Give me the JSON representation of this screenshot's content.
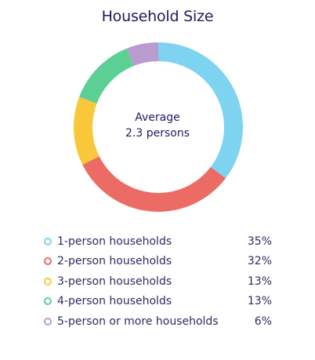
{
  "chart_data": {
    "type": "pie",
    "title": "Household Size",
    "center_label": [
      "Average",
      "2.3 persons"
    ],
    "categories": [
      "1-person households",
      "2-person households",
      "3-person households",
      "4-person households",
      "5-person or more households"
    ],
    "values": [
      35,
      32,
      13,
      13,
      6
    ],
    "value_labels": [
      "35%",
      "32%",
      "13%",
      "13%",
      "6%"
    ],
    "colors": [
      "#7dd3f0",
      "#ec6b64",
      "#f9c83a",
      "#5ccf94",
      "#b99bd0"
    ],
    "legend": "bottom",
    "style": "donut"
  }
}
